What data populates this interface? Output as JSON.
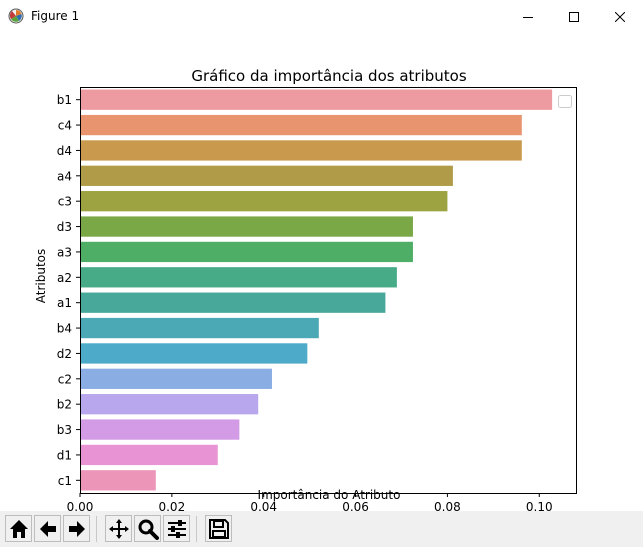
{
  "window": {
    "title": "Figure 1",
    "icons": [
      "matplotlib-logo-icon",
      "minimize-icon",
      "maximize-icon",
      "close-icon"
    ]
  },
  "toolbar": {
    "icons": [
      "home-icon",
      "back-icon",
      "forward-icon",
      "pan-icon",
      "zoom-icon",
      "configure-subplots-icon",
      "save-icon"
    ]
  },
  "chart_data": {
    "type": "bar",
    "orientation": "horizontal",
    "title": "Gráfico da importância dos atributos",
    "xlabel": "Importância do Atributo",
    "ylabel": "Atributos",
    "categories": [
      "b1",
      "c4",
      "d4",
      "a4",
      "c3",
      "d3",
      "a3",
      "a2",
      "a1",
      "b4",
      "d2",
      "c2",
      "b2",
      "b3",
      "d1",
      "c1"
    ],
    "values": [
      0.1028,
      0.0962,
      0.0962,
      0.0812,
      0.08,
      0.0725,
      0.0725,
      0.069,
      0.0665,
      0.052,
      0.0495,
      0.0418,
      0.0388,
      0.0347,
      0.03,
      0.0165
    ],
    "colors": [
      "#ee9aa1",
      "#e8946e",
      "#c99a4e",
      "#b09c48",
      "#9ca340",
      "#7aa846",
      "#4fae66",
      "#48ab87",
      "#48a99b",
      "#4aa9b4",
      "#4daac8",
      "#8aaee4",
      "#b8a7ec",
      "#d39ae6",
      "#e893d4",
      "#ec95b9"
    ],
    "xlim": [
      0,
      0.108
    ],
    "xticks": [
      0.0,
      0.02,
      0.04,
      0.06,
      0.08,
      0.1
    ],
    "xtick_labels": [
      "0.00",
      "0.02",
      "0.04",
      "0.06",
      "0.08",
      "0.10"
    ],
    "legend": {
      "position": "upper right",
      "entries": []
    },
    "grid": false
  }
}
